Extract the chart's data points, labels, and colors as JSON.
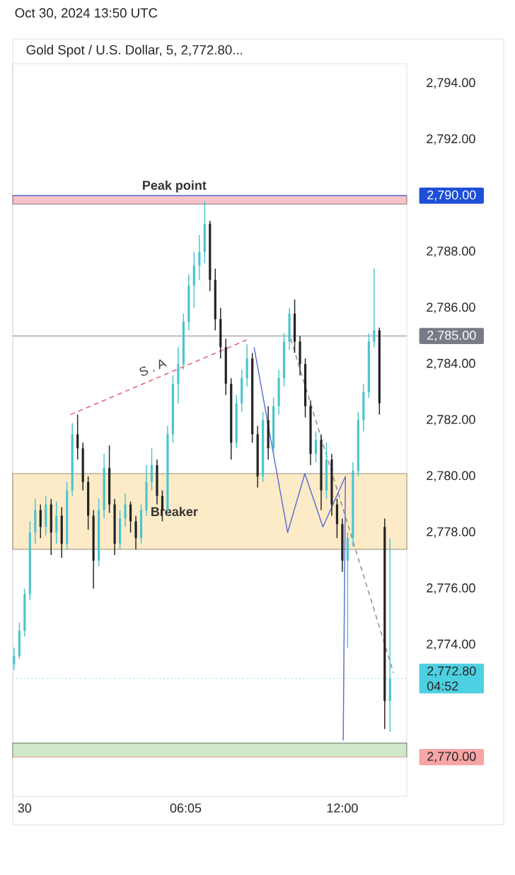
{
  "chart_data": {
    "type": "candlestick",
    "title": "Gold Spot / U.S. Dollar, 5, 2,772.80...",
    "subtitle": "Oct 30, 2024 13:50 UTC",
    "x": [
      "2024-10-29T23:36",
      "2024-10-29T23:48",
      "2024-10-30T00:00",
      "2024-10-30T00:12",
      "2024-10-30T00:24",
      "2024-10-30T00:36",
      "2024-10-30T00:48",
      "2024-10-30T01:00",
      "2024-10-30T01:12",
      "2024-10-30T01:24",
      "2024-10-30T01:36",
      "2024-10-30T01:48",
      "2024-10-30T02:00",
      "2024-10-30T02:12",
      "2024-10-30T02:24",
      "2024-10-30T02:36",
      "2024-10-30T02:48",
      "2024-10-30T03:00",
      "2024-10-30T03:12",
      "2024-10-30T03:24",
      "2024-10-30T03:36",
      "2024-10-30T03:48",
      "2024-10-30T04:00",
      "2024-10-30T04:12",
      "2024-10-30T04:24",
      "2024-10-30T04:36",
      "2024-10-30T04:48",
      "2024-10-30T05:00",
      "2024-10-30T05:12",
      "2024-10-30T05:24",
      "2024-10-30T05:36",
      "2024-10-30T05:48",
      "2024-10-30T06:00",
      "2024-10-30T06:12",
      "2024-10-30T06:24",
      "2024-10-30T06:36",
      "2024-10-30T06:48",
      "2024-10-30T07:00",
      "2024-10-30T07:12",
      "2024-10-30T07:24",
      "2024-10-30T07:36",
      "2024-10-30T07:48",
      "2024-10-30T08:00",
      "2024-10-30T08:12",
      "2024-10-30T08:24",
      "2024-10-30T08:36",
      "2024-10-30T08:48",
      "2024-10-30T09:00",
      "2024-10-30T09:12",
      "2024-10-30T09:24",
      "2024-10-30T09:36",
      "2024-10-30T09:48",
      "2024-10-30T10:00",
      "2024-10-30T10:12",
      "2024-10-30T10:24",
      "2024-10-30T10:36",
      "2024-10-30T10:48",
      "2024-10-30T11:00",
      "2024-10-30T11:12",
      "2024-10-30T11:24",
      "2024-10-30T11:36",
      "2024-10-30T11:48",
      "2024-10-30T12:00",
      "2024-10-30T12:12",
      "2024-10-30T12:24",
      "2024-10-30T12:36",
      "2024-10-30T12:48",
      "2024-10-30T13:00",
      "2024-10-30T13:12",
      "2024-10-30T13:24",
      "2024-10-30T13:36",
      "2024-10-30T13:48"
    ],
    "ohlc": [
      [
        2773.3,
        2773.9,
        2773.1,
        2773.6
      ],
      [
        2773.6,
        2774.8,
        2773.5,
        2774.5
      ],
      [
        2774.5,
        2776.0,
        2774.3,
        2775.8
      ],
      [
        2775.8,
        2778.4,
        2775.6,
        2778.0
      ],
      [
        2778.0,
        2779.2,
        2777.6,
        2778.8
      ],
      [
        2778.8,
        2779.0,
        2777.8,
        2778.2
      ],
      [
        2778.2,
        2779.3,
        2777.9,
        2779.0
      ],
      [
        2779.0,
        2779.2,
        2777.2,
        2778.0
      ],
      [
        2778.0,
        2779.1,
        2777.6,
        2778.6
      ],
      [
        2778.6,
        2778.9,
        2777.1,
        2777.6
      ],
      [
        2777.6,
        2779.8,
        2777.4,
        2779.5
      ],
      [
        2779.5,
        2781.9,
        2779.3,
        2781.5
      ],
      [
        2781.5,
        2782.2,
        2780.6,
        2781.0
      ],
      [
        2781.0,
        2781.2,
        2779.5,
        2779.8
      ],
      [
        2779.8,
        2780.0,
        2778.1,
        2778.6
      ],
      [
        2778.6,
        2778.8,
        2776.0,
        2777.0
      ],
      [
        2777.0,
        2779.2,
        2776.8,
        2778.8
      ],
      [
        2778.8,
        2780.8,
        2778.5,
        2780.3
      ],
      [
        2780.3,
        2781.1,
        2778.7,
        2779.0
      ],
      [
        2779.0,
        2779.2,
        2777.2,
        2777.6
      ],
      [
        2777.6,
        2778.8,
        2777.4,
        2778.5
      ],
      [
        2778.5,
        2779.4,
        2778.2,
        2779.0
      ],
      [
        2779.0,
        2779.1,
        2778.0,
        2778.4
      ],
      [
        2778.4,
        2778.6,
        2777.4,
        2777.8
      ],
      [
        2777.8,
        2779.0,
        2777.6,
        2778.8
      ],
      [
        2778.8,
        2780.4,
        2778.6,
        2779.8
      ],
      [
        2779.8,
        2781.0,
        2779.5,
        2780.4
      ],
      [
        2780.4,
        2780.6,
        2779.0,
        2779.3
      ],
      [
        2779.3,
        2779.5,
        2778.4,
        2778.8
      ],
      [
        2778.8,
        2781.8,
        2778.6,
        2781.5
      ],
      [
        2781.5,
        2783.6,
        2781.2,
        2783.3
      ],
      [
        2783.3,
        2784.6,
        2782.6,
        2784.0
      ],
      [
        2784.0,
        2785.8,
        2783.8,
        2785.5
      ],
      [
        2785.5,
        2787.2,
        2785.2,
        2786.8
      ],
      [
        2786.8,
        2788.0,
        2786.0,
        2787.5
      ],
      [
        2787.5,
        2788.6,
        2787.0,
        2788.0
      ],
      [
        2788.0,
        2789.8,
        2787.6,
        2789.0
      ],
      [
        2789.0,
        2789.1,
        2786.6,
        2787.0
      ],
      [
        2787.0,
        2787.4,
        2785.2,
        2785.6
      ],
      [
        2785.6,
        2786.0,
        2784.2,
        2784.6
      ],
      [
        2784.6,
        2784.9,
        2782.9,
        2783.3
      ],
      [
        2783.3,
        2783.5,
        2780.6,
        2781.2
      ],
      [
        2781.2,
        2782.9,
        2781.0,
        2782.6
      ],
      [
        2782.6,
        2783.8,
        2782.3,
        2783.5
      ],
      [
        2783.5,
        2784.7,
        2783.2,
        2784.2
      ],
      [
        2784.2,
        2784.4,
        2781.2,
        2781.5
      ],
      [
        2781.5,
        2781.8,
        2779.6,
        2780.0
      ],
      [
        2780.0,
        2782.3,
        2779.8,
        2782.0
      ],
      [
        2782.0,
        2782.5,
        2780.6,
        2781.0
      ],
      [
        2781.0,
        2782.8,
        2780.8,
        2782.5
      ],
      [
        2782.5,
        2783.8,
        2782.2,
        2783.5
      ],
      [
        2783.5,
        2785.1,
        2783.2,
        2784.8
      ],
      [
        2784.8,
        2786.0,
        2784.5,
        2785.8
      ],
      [
        2785.8,
        2786.3,
        2784.4,
        2784.8
      ],
      [
        2784.8,
        2785.0,
        2783.6,
        2784.0
      ],
      [
        2784.0,
        2784.2,
        2782.1,
        2782.5
      ],
      [
        2782.5,
        2782.7,
        2780.4,
        2780.8
      ],
      [
        2780.8,
        2781.6,
        2780.5,
        2781.3
      ],
      [
        2781.3,
        2781.5,
        2778.8,
        2779.5
      ],
      [
        2779.5,
        2781.2,
        2779.2,
        2780.6
      ],
      [
        2780.6,
        2780.8,
        2778.6,
        2779.0
      ],
      [
        2779.0,
        2779.2,
        2777.8,
        2778.3
      ],
      [
        2778.3,
        2778.5,
        2776.6,
        2777.0
      ],
      [
        2777.0,
        2778.0,
        2773.9,
        2777.8
      ],
      [
        2777.8,
        2780.5,
        2777.5,
        2780.2
      ],
      [
        2780.2,
        2782.3,
        2780.0,
        2782.0
      ],
      [
        2782.0,
        2783.3,
        2781.6,
        2783.0
      ],
      [
        2783.0,
        2785.1,
        2782.8,
        2784.8
      ],
      [
        2784.8,
        2787.4,
        2784.6,
        2785.2
      ],
      [
        2785.2,
        2785.3,
        2782.2,
        2782.6
      ],
      [
        2778.2,
        2778.5,
        2771.0,
        2772.0
      ],
      [
        2772.0,
        2777.8,
        2770.9,
        2772.8
      ]
    ],
    "colors": [
      "#4cc4cf",
      "#4cc4cf",
      "#4cc4cf",
      "#4cc4cf",
      "#4cc4cf",
      "#222222",
      "#4cc4cf",
      "#222222",
      "#4cc4cf",
      "#222222",
      "#4cc4cf",
      "#4cc4cf",
      "#222222",
      "#222222",
      "#222222",
      "#222222",
      "#4cc4cf",
      "#4cc4cf",
      "#222222",
      "#222222",
      "#4cc4cf",
      "#4cc4cf",
      "#222222",
      "#222222",
      "#4cc4cf",
      "#4cc4cf",
      "#4cc4cf",
      "#222222",
      "#222222",
      "#4cc4cf",
      "#4cc4cf",
      "#4cc4cf",
      "#4cc4cf",
      "#4cc4cf",
      "#4cc4cf",
      "#4cc4cf",
      "#4cc4cf",
      "#222222",
      "#222222",
      "#222222",
      "#222222",
      "#222222",
      "#4cc4cf",
      "#4cc4cf",
      "#4cc4cf",
      "#222222",
      "#222222",
      "#4cc4cf",
      "#222222",
      "#4cc4cf",
      "#4cc4cf",
      "#4cc4cf",
      "#4cc4cf",
      "#222222",
      "#222222",
      "#222222",
      "#222222",
      "#4cc4cf",
      "#222222",
      "#4cc4cf",
      "#222222",
      "#222222",
      "#222222",
      "#4cc4cf",
      "#4cc4cf",
      "#4cc4cf",
      "#4cc4cf",
      "#4cc4cf",
      "#4cc4cf",
      "#222222",
      "#222222",
      "#4cc4cf"
    ],
    "series": [
      {
        "type": "line",
        "color": "#e05a6a",
        "line_style": "dashed",
        "x": [
          "2024-10-30T01:44",
          "2024-10-30T08:29"
        ],
        "values": [
          2782.2,
          2784.9
        ]
      },
      {
        "type": "line",
        "color": "#8a8a8a",
        "line_style": "dashed",
        "x": [
          "2024-10-30T10:03",
          "2024-10-30T13:56"
        ],
        "values": [
          2784.9,
          2773.0
        ]
      },
      {
        "type": "line",
        "color": "#5a6fd8",
        "line_style": "solid",
        "x": [
          "2024-10-30T08:40",
          "2024-10-30T09:56",
          "2024-10-30T10:35",
          "2024-10-30T11:16",
          "2024-10-30T12:07",
          "2024-10-30T12:02"
        ],
        "values": [
          2784.6,
          2778.0,
          2780.1,
          2778.2,
          2780.0,
          2770.6
        ]
      }
    ],
    "xlim": [
      "2024-10-29T23:33",
      "2024-10-30T14:26"
    ],
    "ylim": [
      2768.6,
      2794.7
    ],
    "xticks": [
      {
        "value": "2024-10-30T00:00",
        "label": "30"
      },
      {
        "value": "2024-10-30T06:05",
        "label": "06:05"
      },
      {
        "value": "2024-10-30T12:00",
        "label": "12:00"
      }
    ],
    "yticks": [
      {
        "value": 2774,
        "label": "2,774.00"
      },
      {
        "value": 2776,
        "label": "2,776.00"
      },
      {
        "value": 2778,
        "label": "2,778.00"
      },
      {
        "value": 2780,
        "label": "2,780.00"
      },
      {
        "value": 2782,
        "label": "2,782.00"
      },
      {
        "value": 2784,
        "label": "2,784.00"
      },
      {
        "value": 2786,
        "label": "2,786.00"
      },
      {
        "value": 2788,
        "label": "2,788.00"
      },
      {
        "value": 2792,
        "label": "2,792.00"
      },
      {
        "value": 2794,
        "label": "2,794.00"
      }
    ],
    "bands": [
      {
        "axis": "y",
        "from": 2789.7,
        "to": 2790.0,
        "label": "Peak point",
        "color": "#f6c3c8"
      },
      {
        "axis": "y",
        "from": 2777.4,
        "to": 2780.1,
        "label": "Breaker",
        "color": "#fdebc8"
      },
      {
        "axis": "y",
        "from": 2770.0,
        "to": 2770.5,
        "color": "#cfe8c9"
      }
    ],
    "ref_lines": [
      {
        "axis": "y",
        "value": 2790,
        "label": "2,790.00",
        "color": "#1e4fd8",
        "line_style": "solid"
      },
      {
        "axis": "y",
        "value": 2785,
        "label": "2,785.00",
        "color": "#787b86",
        "line_style": "solid"
      },
      {
        "axis": "y",
        "value": 2772.8,
        "label": "2,772.80",
        "color": "#4dd0e1",
        "line_style": "dotted"
      },
      {
        "axis": "y",
        "value": 2770,
        "label": "2,770.00",
        "color": "#f7a5a5",
        "line_style": "solid"
      }
    ],
    "annotations": [
      {
        "text": "S . A",
        "x": "2024-10-30T05:00",
        "y": 2783.5
      },
      "04:52"
    ]
  }
}
